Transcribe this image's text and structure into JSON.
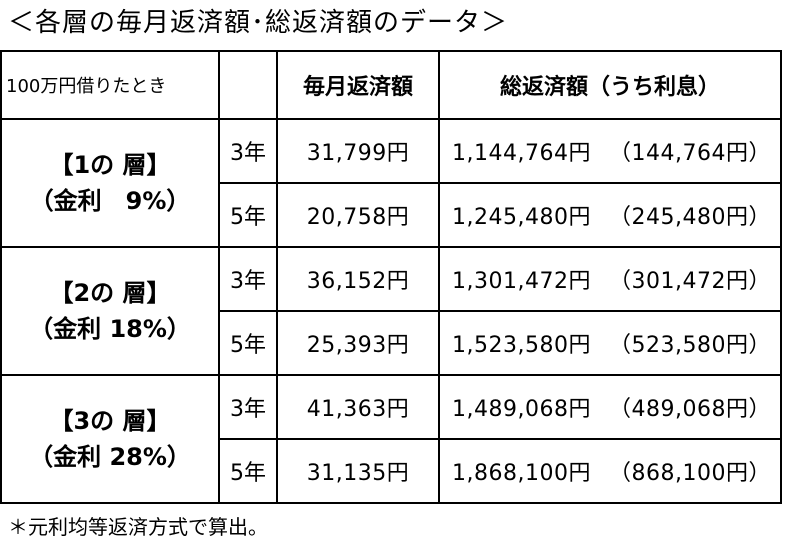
{
  "title": "＜各層の毎月返済額･総返済額のデータ＞",
  "table": {
    "note": "100万円借りたとき",
    "col_monthly": "毎月返済額",
    "col_total": "総返済額（うち利息）",
    "tiers": [
      {
        "name": "【1の 層】",
        "rate": "（金利　9%）",
        "rows": [
          {
            "term": "3年",
            "monthly": "31,799円",
            "total": "1,144,764円",
            "interest": "（144,764円）"
          },
          {
            "term": "5年",
            "monthly": "20,758円",
            "total": "1,245,480円",
            "interest": "（245,480円）"
          }
        ]
      },
      {
        "name": "【2の 層】",
        "rate": "（金利 18%）",
        "rows": [
          {
            "term": "3年",
            "monthly": "36,152円",
            "total": "1,301,472円",
            "interest": "（301,472円）"
          },
          {
            "term": "5年",
            "monthly": "25,393円",
            "total": "1,523,580円",
            "interest": "（523,580円）"
          }
        ]
      },
      {
        "name": "【3の 層】",
        "rate": "（金利 28%）",
        "rows": [
          {
            "term": "3年",
            "monthly": "41,363円",
            "total": "1,489,068円",
            "interest": "（489,068円）"
          },
          {
            "term": "5年",
            "monthly": "31,135円",
            "total": "1,868,100円",
            "interest": "（868,100円）"
          }
        ]
      }
    ]
  },
  "footnote": "＊元利均等返済方式で算出。"
}
